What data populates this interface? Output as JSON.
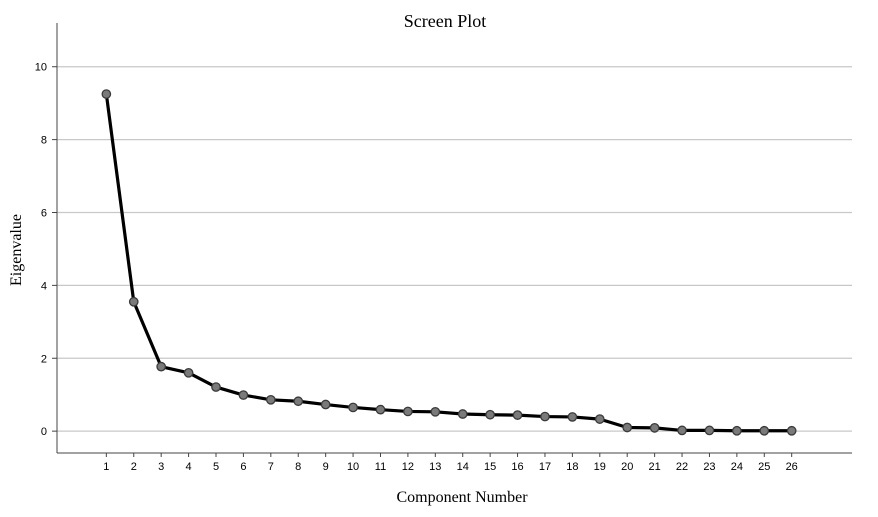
{
  "chart_data": {
    "type": "line",
    "title": "Screen Plot",
    "xlabel": "Component Number",
    "ylabel": "Eigenvalue",
    "x": [
      1,
      2,
      3,
      4,
      5,
      6,
      7,
      8,
      9,
      10,
      11,
      12,
      13,
      14,
      15,
      16,
      17,
      18,
      19,
      20,
      21,
      22,
      23,
      24,
      25,
      26
    ],
    "series": [
      {
        "values": [
          9.25,
          3.55,
          1.77,
          1.6,
          1.21,
          0.99,
          0.86,
          0.82,
          0.73,
          0.65,
          0.59,
          0.54,
          0.53,
          0.47,
          0.45,
          0.44,
          0.4,
          0.39,
          0.33,
          0.1,
          0.09,
          0.02,
          0.02,
          0.01,
          0.01,
          0.01
        ]
      }
    ],
    "yticks": [
      0,
      2,
      4,
      6,
      8,
      10
    ],
    "ylim": [
      -0.6,
      11.2
    ],
    "xlim": [
      -0.8,
      28.2
    ],
    "grid": true,
    "legend": "none",
    "colors": {
      "line": "#000000",
      "marker_fill": "#7a7a7a",
      "marker_stroke": "#3a3a3a",
      "grid": "#c8c8c8",
      "axis": "#444444"
    }
  }
}
